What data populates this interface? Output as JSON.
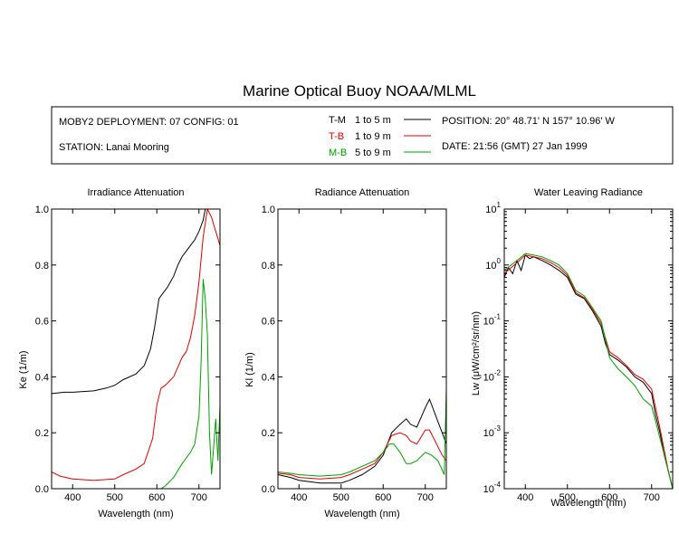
{
  "title": "Marine Optical Buoy NOAA/MLML",
  "info": {
    "deployment": "MOBY2 DEPLOYMENT: 07 CONFIG: 01",
    "station": "STATION: Lanai Mooring",
    "position": "POSITION: 20° 48.71' N   157° 10.96' W",
    "date": "DATE: 21:56 (GMT) 27 Jan 1999",
    "legend": [
      {
        "key": "T-M",
        "range": "1 to 5  m",
        "color": "#000000"
      },
      {
        "key": "T-B",
        "range": "1 to 9  m",
        "color": "#e00000"
      },
      {
        "key": "M-B",
        "range": "5 to 9  m",
        "color": "#00a000"
      }
    ]
  },
  "chart_data": [
    {
      "type": "line",
      "title": "Irradiance Attenuation",
      "xlabel": "Wavelength (nm)",
      "ylabel": "Ke  (1/m)",
      "xlim": [
        350,
        750
      ],
      "ylim": [
        0,
        1
      ],
      "xticks": [
        400,
        500,
        600,
        700
      ],
      "yticks": [
        0.0,
        0.2,
        0.4,
        0.6,
        0.8,
        1.0
      ],
      "ytick_labels": [
        "0.0",
        "0.2",
        "0.4",
        "0.6",
        "0.8",
        "1.0"
      ],
      "series": [
        {
          "name": "T-M",
          "color": "#000000",
          "x": [
            350,
            380,
            400,
            450,
            480,
            500,
            520,
            550,
            570,
            585,
            595,
            605,
            615,
            625,
            640,
            650,
            660,
            670,
            680,
            690,
            700,
            710,
            715
          ],
          "y": [
            0.34,
            0.345,
            0.345,
            0.35,
            0.36,
            0.37,
            0.39,
            0.41,
            0.44,
            0.5,
            0.58,
            0.68,
            0.7,
            0.72,
            0.76,
            0.8,
            0.83,
            0.85,
            0.87,
            0.89,
            0.92,
            0.96,
            1.0
          ]
        },
        {
          "name": "T-B",
          "color": "#e00000",
          "x": [
            350,
            370,
            400,
            450,
            500,
            520,
            550,
            570,
            590,
            600,
            610,
            620,
            640,
            660,
            670,
            680,
            690,
            700,
            710,
            720,
            730,
            740,
            750
          ],
          "y": [
            0.06,
            0.045,
            0.035,
            0.03,
            0.035,
            0.05,
            0.07,
            0.09,
            0.18,
            0.3,
            0.36,
            0.37,
            0.4,
            0.47,
            0.49,
            0.54,
            0.62,
            0.74,
            0.9,
            1.0,
            0.97,
            0.92,
            0.87
          ]
        },
        {
          "name": "M-B",
          "color": "#00a000",
          "x": [
            350,
            400,
            500,
            550,
            580,
            600,
            610,
            620,
            640,
            660,
            670,
            680,
            690,
            700,
            705,
            710,
            715,
            720,
            725,
            730,
            735,
            740,
            745,
            750
          ],
          "y": [
            0.0,
            0.0,
            0.0,
            0.0,
            0.0,
            0.0,
            0.0,
            0.01,
            0.04,
            0.09,
            0.11,
            0.13,
            0.16,
            0.26,
            0.45,
            0.75,
            0.68,
            0.55,
            0.2,
            0.05,
            0.15,
            0.25,
            0.1,
            0.3
          ]
        }
      ]
    },
    {
      "type": "line",
      "title": "Radiance Attenuation",
      "xlabel": "Wavelength (nm)",
      "ylabel": "Kl  (1/m)",
      "xlim": [
        350,
        750
      ],
      "ylim": [
        0,
        1
      ],
      "xticks": [
        400,
        500,
        600,
        700
      ],
      "yticks": [
        0.0,
        0.2,
        0.4,
        0.6,
        0.8,
        1.0
      ],
      "ytick_labels": [
        "0.0",
        "0.2",
        "0.4",
        "0.6",
        "0.8",
        "1.0"
      ],
      "series": [
        {
          "name": "T-M",
          "color": "#000000",
          "x": [
            350,
            380,
            400,
            450,
            500,
            520,
            550,
            580,
            600,
            620,
            640,
            655,
            665,
            680,
            700,
            710,
            720,
            730,
            740,
            750
          ],
          "y": [
            0.05,
            0.04,
            0.03,
            0.02,
            0.02,
            0.03,
            0.05,
            0.08,
            0.12,
            0.2,
            0.23,
            0.25,
            0.23,
            0.22,
            0.29,
            0.32,
            0.28,
            0.24,
            0.2,
            0.16
          ]
        },
        {
          "name": "T-B",
          "color": "#e00000",
          "x": [
            350,
            380,
            400,
            450,
            500,
            520,
            550,
            580,
            600,
            620,
            640,
            655,
            665,
            680,
            700,
            710,
            720,
            730,
            740,
            750
          ],
          "y": [
            0.055,
            0.05,
            0.04,
            0.035,
            0.04,
            0.05,
            0.07,
            0.09,
            0.13,
            0.19,
            0.2,
            0.19,
            0.17,
            0.16,
            0.21,
            0.21,
            0.18,
            0.15,
            0.12,
            0.1
          ]
        },
        {
          "name": "M-B",
          "color": "#00a000",
          "x": [
            350,
            380,
            400,
            450,
            500,
            520,
            550,
            580,
            600,
            615,
            625,
            640,
            655,
            665,
            680,
            700,
            715,
            730,
            745,
            750
          ],
          "y": [
            0.06,
            0.055,
            0.05,
            0.045,
            0.05,
            0.06,
            0.08,
            0.1,
            0.13,
            0.16,
            0.16,
            0.13,
            0.09,
            0.09,
            0.1,
            0.13,
            0.12,
            0.1,
            0.05,
            0.36
          ]
        }
      ]
    },
    {
      "type": "line",
      "title": "Water Leaving Radiance",
      "xlabel": "Wavelength (nm)",
      "ylabel": "Lw  (μW/cm²/sr/nm)",
      "xlim": [
        350,
        750
      ],
      "ylim": [
        0.0001,
        10
      ],
      "yscale": "log",
      "xticks": [
        400,
        500,
        600,
        700
      ],
      "yticks": [
        10,
        1,
        0.1,
        0.01,
        0.001,
        0.0001
      ],
      "ytick_labels": [
        {
          "base": "10",
          "exp": "1"
        },
        {
          "base": "10",
          "exp": "0"
        },
        {
          "base": "10",
          "exp": "-1"
        },
        {
          "base": "10",
          "exp": "-2"
        },
        {
          "base": "10",
          "exp": "-3"
        },
        {
          "base": "10",
          "exp": "-4"
        }
      ],
      "series": [
        {
          "name": "T-M",
          "color": "#000000",
          "x": [
            350,
            360,
            370,
            380,
            390,
            400,
            410,
            420,
            440,
            460,
            480,
            500,
            520,
            540,
            560,
            580,
            590,
            600,
            620,
            640,
            660,
            680,
            700,
            710,
            720,
            730,
            740,
            750
          ],
          "y": [
            0.6,
            0.9,
            0.7,
            1.2,
            0.8,
            1.5,
            1.3,
            1.4,
            1.2,
            1.0,
            0.8,
            0.6,
            0.3,
            0.25,
            0.15,
            0.08,
            0.04,
            0.025,
            0.02,
            0.015,
            0.01,
            0.008,
            0.005,
            0.002,
            0.001,
            0.0004,
            0.0002,
            0.0001
          ]
        },
        {
          "name": "T-B",
          "color": "#e00000",
          "x": [
            350,
            380,
            400,
            420,
            440,
            460,
            480,
            500,
            520,
            540,
            560,
            580,
            600,
            620,
            640,
            660,
            680,
            700,
            720,
            740,
            750
          ],
          "y": [
            0.7,
            1.1,
            1.5,
            1.4,
            1.3,
            1.1,
            0.9,
            0.65,
            0.32,
            0.26,
            0.16,
            0.09,
            0.028,
            0.022,
            0.016,
            0.011,
            0.009,
            0.006,
            0.0012,
            0.0002,
            0.0001
          ]
        },
        {
          "name": "M-B",
          "color": "#00a000",
          "x": [
            350,
            380,
            400,
            420,
            440,
            460,
            480,
            500,
            520,
            540,
            560,
            580,
            600,
            620,
            640,
            660,
            680,
            700,
            720,
            740,
            750
          ],
          "y": [
            0.8,
            1.2,
            1.6,
            1.5,
            1.4,
            1.2,
            1.0,
            0.7,
            0.35,
            0.28,
            0.17,
            0.1,
            0.022,
            0.014,
            0.01,
            0.007,
            0.004,
            0.003,
            0.0008,
            0.0002,
            0.0001
          ]
        }
      ]
    }
  ]
}
